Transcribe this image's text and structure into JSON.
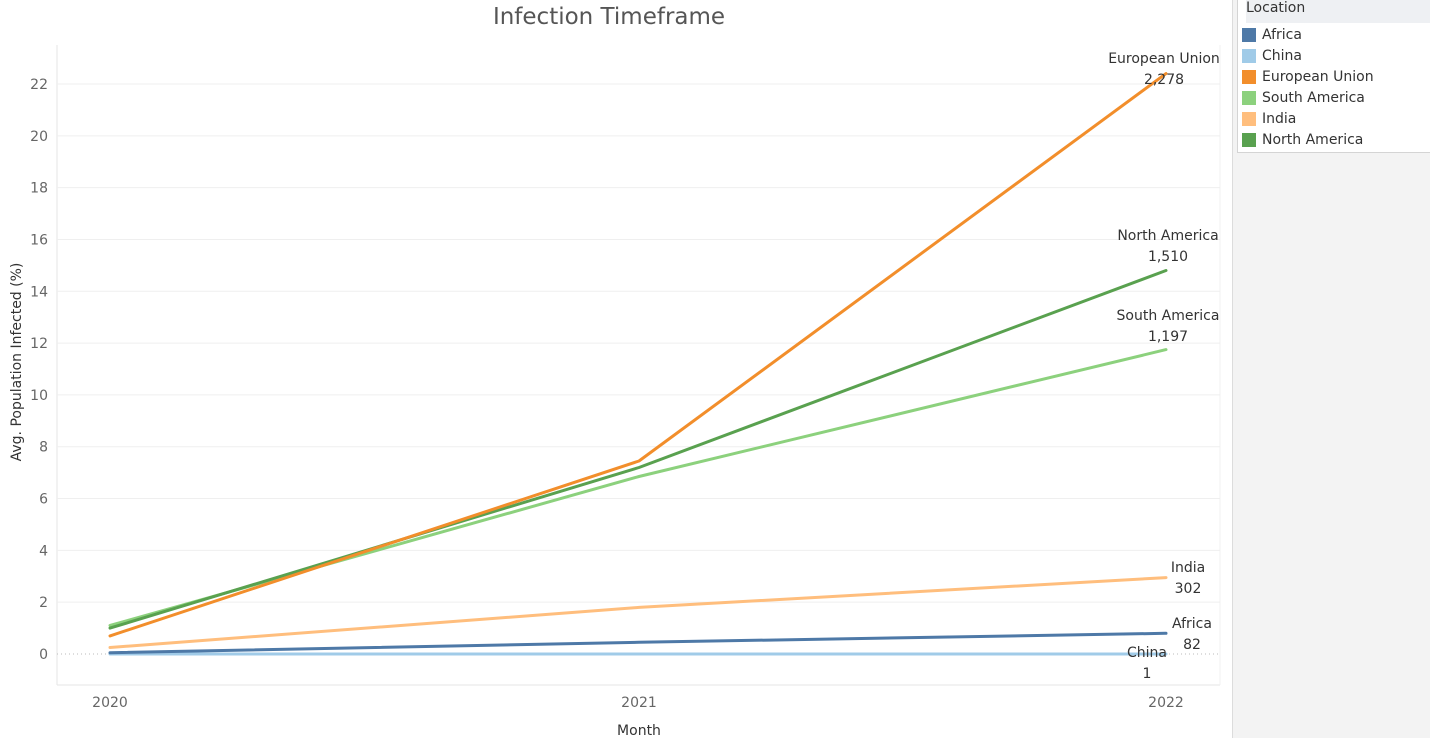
{
  "chart_data": {
    "type": "line",
    "title": "Infection Timeframe",
    "xlabel": "Month",
    "ylabel": "Avg. Population Infected (%)",
    "x": [
      "2020",
      "2021",
      "2022"
    ],
    "yticks": [
      "0",
      "2",
      "4",
      "6",
      "8",
      "10",
      "12",
      "14",
      "16",
      "18",
      "20",
      "22"
    ],
    "ylim": [
      -1.3,
      23.6
    ],
    "grid": true,
    "legend_title": "Location",
    "legend_position": "top-right",
    "series": [
      {
        "name": "Africa",
        "color": "#4e79a7",
        "values": [
          0.05,
          0.45,
          0.8
        ],
        "end_label": "82"
      },
      {
        "name": "China",
        "color": "#a0cbe8",
        "values": [
          0.0,
          0.0,
          0.0
        ],
        "end_label": "1"
      },
      {
        "name": "European Union",
        "color": "#f28e2b",
        "values": [
          0.7,
          7.45,
          22.4
        ],
        "end_label": "2,278"
      },
      {
        "name": "South America",
        "color": "#8cd17d",
        "values": [
          1.1,
          6.85,
          11.75
        ],
        "end_label": "1,197"
      },
      {
        "name": "India",
        "color": "#ffbe7d",
        "values": [
          0.25,
          1.8,
          2.95
        ],
        "end_label": "302"
      },
      {
        "name": "North America",
        "color": "#59a14f",
        "values": [
          1.0,
          7.2,
          14.8
        ],
        "end_label": "1,510"
      }
    ]
  }
}
